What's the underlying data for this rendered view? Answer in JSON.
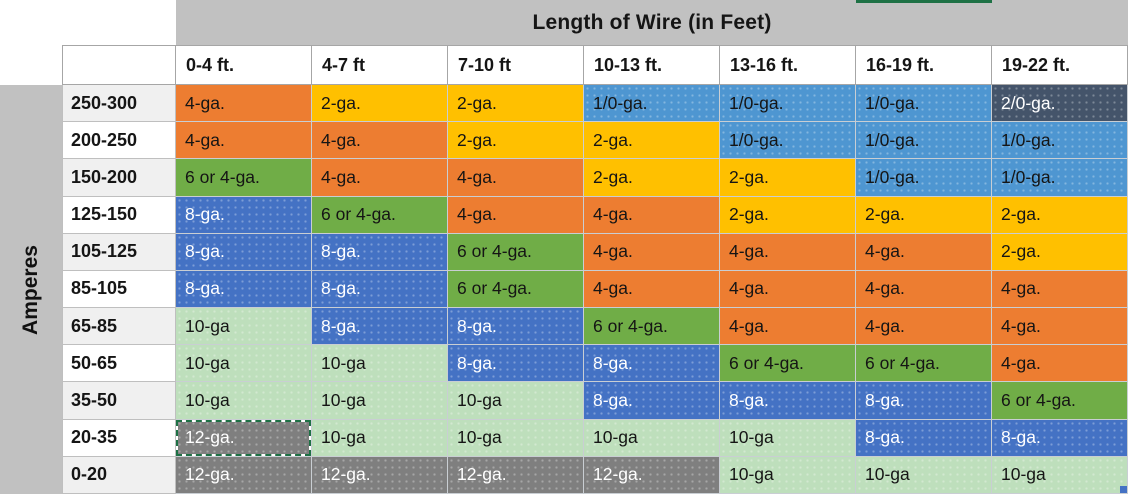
{
  "table": {
    "title": "Length of Wire (in Feet)",
    "y_axis_label": "Amperes",
    "columns": [
      "0-4 ft.",
      "4-7 ft",
      "7-10 ft",
      "10-13 ft.",
      "13-16 ft.",
      "16-19 ft.",
      "19-22 ft."
    ],
    "rows": [
      {
        "label": "250-300",
        "cells": [
          {
            "v": "4-ga.",
            "c": "orange"
          },
          {
            "v": "2-ga.",
            "c": "gold"
          },
          {
            "v": "2-ga.",
            "c": "gold"
          },
          {
            "v": "1/0-ga.",
            "c": "steel"
          },
          {
            "v": "1/0-ga.",
            "c": "steel"
          },
          {
            "v": "1/0-ga.",
            "c": "steel"
          },
          {
            "v": "2/0-ga.",
            "c": "dark"
          }
        ]
      },
      {
        "label": "200-250",
        "cells": [
          {
            "v": "4-ga.",
            "c": "orange"
          },
          {
            "v": "4-ga.",
            "c": "orange"
          },
          {
            "v": "2-ga.",
            "c": "gold"
          },
          {
            "v": "2-ga.",
            "c": "gold"
          },
          {
            "v": "1/0-ga.",
            "c": "steel"
          },
          {
            "v": "1/0-ga.",
            "c": "steel"
          },
          {
            "v": "1/0-ga.",
            "c": "steel"
          }
        ]
      },
      {
        "label": "150-200",
        "cells": [
          {
            "v": "6 or 4-ga.",
            "c": "green"
          },
          {
            "v": "4-ga.",
            "c": "orange"
          },
          {
            "v": "4-ga.",
            "c": "orange"
          },
          {
            "v": "2-ga.",
            "c": "gold"
          },
          {
            "v": "2-ga.",
            "c": "gold"
          },
          {
            "v": "1/0-ga.",
            "c": "steel"
          },
          {
            "v": "1/0-ga.",
            "c": "steel"
          }
        ]
      },
      {
        "label": "125-150",
        "cells": [
          {
            "v": "8-ga.",
            "c": "navy"
          },
          {
            "v": "6 or 4-ga.",
            "c": "green"
          },
          {
            "v": "4-ga.",
            "c": "orange"
          },
          {
            "v": "4-ga.",
            "c": "orange"
          },
          {
            "v": "2-ga.",
            "c": "gold"
          },
          {
            "v": "2-ga.",
            "c": "gold"
          },
          {
            "v": "2-ga.",
            "c": "gold"
          }
        ]
      },
      {
        "label": "105-125",
        "cells": [
          {
            "v": "8-ga.",
            "c": "navy"
          },
          {
            "v": "8-ga.",
            "c": "navy"
          },
          {
            "v": "6 or 4-ga.",
            "c": "green"
          },
          {
            "v": "4-ga.",
            "c": "orange"
          },
          {
            "v": "4-ga.",
            "c": "orange"
          },
          {
            "v": "4-ga.",
            "c": "orange"
          },
          {
            "v": "2-ga.",
            "c": "gold"
          }
        ]
      },
      {
        "label": "85-105",
        "cells": [
          {
            "v": "8-ga.",
            "c": "navy"
          },
          {
            "v": "8-ga.",
            "c": "navy"
          },
          {
            "v": "6 or 4-ga.",
            "c": "green"
          },
          {
            "v": "4-ga.",
            "c": "orange"
          },
          {
            "v": "4-ga.",
            "c": "orange"
          },
          {
            "v": "4-ga.",
            "c": "orange"
          },
          {
            "v": "4-ga.",
            "c": "orange"
          }
        ]
      },
      {
        "label": "65-85",
        "cells": [
          {
            "v": "10-ga",
            "c": "ltgreen"
          },
          {
            "v": "8-ga.",
            "c": "navy"
          },
          {
            "v": "8-ga.",
            "c": "navy"
          },
          {
            "v": "6 or 4-ga.",
            "c": "green"
          },
          {
            "v": "4-ga.",
            "c": "orange"
          },
          {
            "v": "4-ga.",
            "c": "orange"
          },
          {
            "v": "4-ga.",
            "c": "orange"
          }
        ]
      },
      {
        "label": "50-65",
        "cells": [
          {
            "v": "10-ga",
            "c": "ltgreen"
          },
          {
            "v": "10-ga",
            "c": "ltgreen"
          },
          {
            "v": "8-ga.",
            "c": "navy"
          },
          {
            "v": "8-ga.",
            "c": "navy"
          },
          {
            "v": "6 or 4-ga.",
            "c": "green"
          },
          {
            "v": "6 or 4-ga.",
            "c": "green"
          },
          {
            "v": "4-ga.",
            "c": "orange"
          }
        ]
      },
      {
        "label": "35-50",
        "cells": [
          {
            "v": "10-ga",
            "c": "ltgreen"
          },
          {
            "v": "10-ga",
            "c": "ltgreen"
          },
          {
            "v": "10-ga",
            "c": "ltgreen"
          },
          {
            "v": "8-ga.",
            "c": "navy"
          },
          {
            "v": "8-ga.",
            "c": "navy"
          },
          {
            "v": "8-ga.",
            "c": "navy"
          },
          {
            "v": "6 or 4-ga.",
            "c": "green"
          }
        ]
      },
      {
        "label": "20-35",
        "cells": [
          {
            "v": "12-ga.",
            "c": "gray",
            "selected": true
          },
          {
            "v": "10-ga",
            "c": "ltgreen"
          },
          {
            "v": "10-ga",
            "c": "ltgreen"
          },
          {
            "v": "10-ga",
            "c": "ltgreen"
          },
          {
            "v": "10-ga",
            "c": "ltgreen"
          },
          {
            "v": "8-ga.",
            "c": "navy"
          },
          {
            "v": "8-ga.",
            "c": "navy"
          }
        ]
      },
      {
        "label": "0-20",
        "cells": [
          {
            "v": "12-ga.",
            "c": "gray"
          },
          {
            "v": "12-ga.",
            "c": "gray"
          },
          {
            "v": "12-ga.",
            "c": "gray"
          },
          {
            "v": "12-ga.",
            "c": "gray"
          },
          {
            "v": "10-ga",
            "c": "ltgreen"
          },
          {
            "v": "10-ga",
            "c": "ltgreen"
          },
          {
            "v": "10-ga",
            "c": "ltgreen"
          }
        ]
      }
    ]
  },
  "colors": {
    "orange": "#ED7D31",
    "gold": "#FFC000",
    "steel": "#4E96D1",
    "navy": "#4472C4",
    "green": "#70AD47",
    "ltgreen": "#BEDFBC",
    "gray": "#7F7F7F",
    "dark": "#44546A",
    "header_band": "#C1C1C1",
    "row_label_alt": "#F0F0F0",
    "selection_green": "#1E7145",
    "fill_handle": "#4472C4"
  }
}
